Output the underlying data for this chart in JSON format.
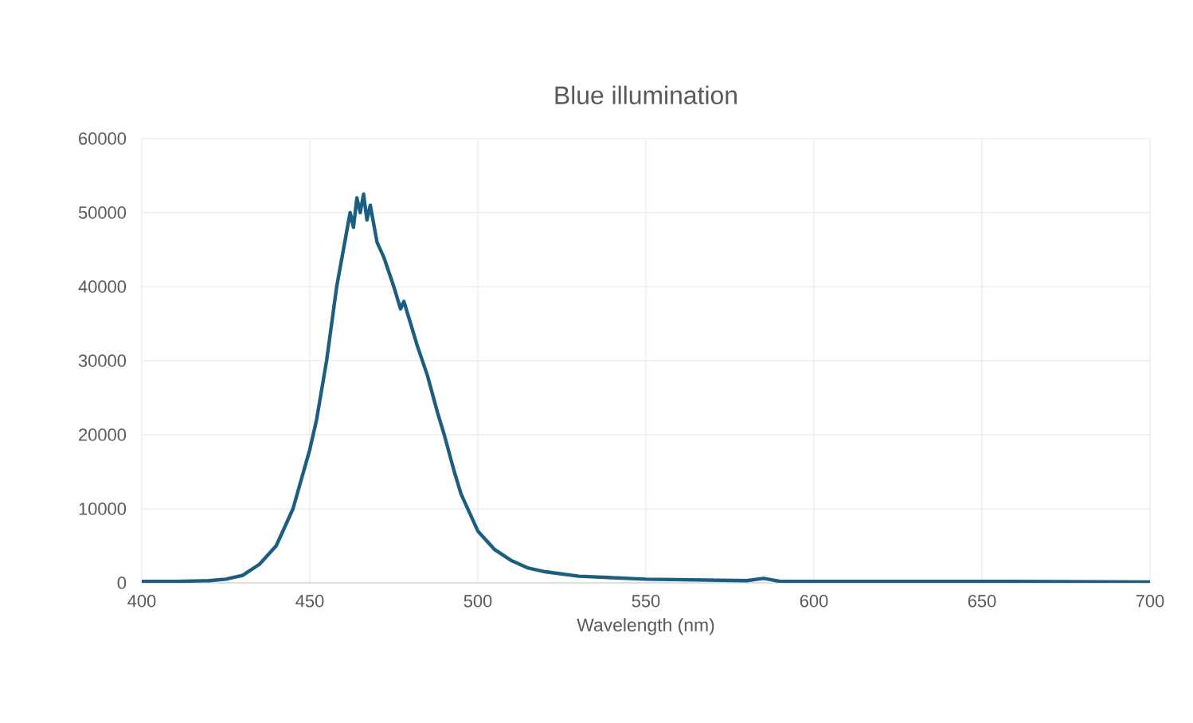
{
  "chart_data": {
    "type": "line",
    "title": "Blue illumination",
    "xlabel": "Wavelength (nm)",
    "x": [
      400,
      410,
      420,
      425,
      430,
      435,
      440,
      445,
      450,
      452,
      455,
      458,
      460,
      462,
      463,
      464,
      465,
      466,
      467,
      468,
      470,
      472,
      475,
      477,
      478,
      480,
      482,
      485,
      488,
      490,
      493,
      495,
      500,
      505,
      510,
      515,
      520,
      530,
      550,
      580,
      585,
      590,
      620,
      650,
      700
    ],
    "series": [
      {
        "color": "#1b5e80",
        "values": [
          200,
          200,
          300,
          500,
          1000,
          2500,
          5000,
          10000,
          18000,
          22000,
          30000,
          40000,
          45000,
          50000,
          48000,
          52000,
          50000,
          52500,
          49000,
          51000,
          46000,
          44000,
          40000,
          37000,
          38000,
          35000,
          32000,
          28000,
          23000,
          20000,
          15000,
          12000,
          7000,
          4500,
          3000,
          2000,
          1500,
          900,
          500,
          300,
          600,
          200,
          200,
          200,
          100
        ]
      }
    ],
    "xlim": [
      400,
      700
    ],
    "ylim": [
      0,
      60000
    ],
    "xticks": [
      400,
      450,
      500,
      550,
      600,
      650,
      700
    ],
    "yticks": [
      0,
      10000,
      20000,
      30000,
      40000,
      50000,
      60000
    ],
    "grid": true,
    "marker": "none",
    "line_style": "solid"
  }
}
